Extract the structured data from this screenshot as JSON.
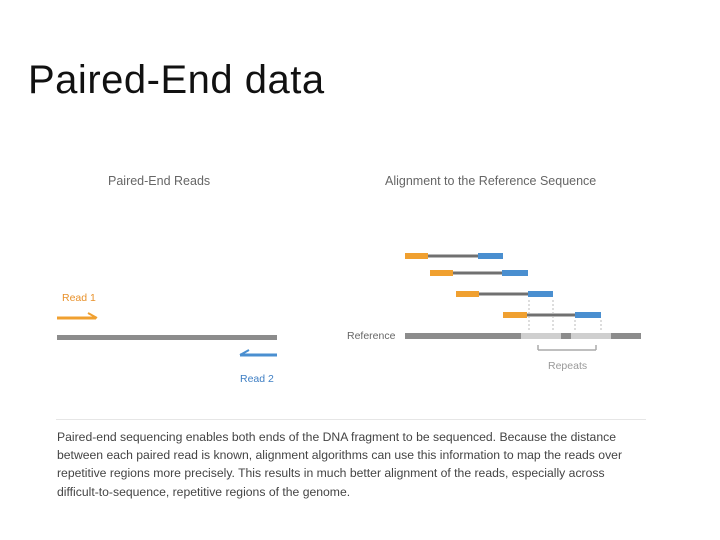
{
  "slide": {
    "title": "Paired-End data"
  },
  "figure": {
    "left_panel_title": "Paired-End Reads",
    "right_panel_title": "Alignment to the Reference Sequence",
    "read1_label": "Read 1",
    "read2_label": "Read 2",
    "reference_label": "Reference",
    "repeats_label": "Repeats"
  },
  "colors": {
    "read1": "#f0a030",
    "read2": "#4a8fd0",
    "reference": "#8c8c8c",
    "connector": "#707070",
    "repeat_region": "#cfcfcf",
    "label_orange": "#e8912a",
    "label_blue": "#3f7fc4",
    "panel_title": "#666666"
  },
  "caption": {
    "text": "Paired-end sequencing enables both ends of the DNA fragment to be sequenced. Because the distance between each paired read is known, alignment algorithms can use this information to map the reads over repetitive regions more precisely. This results in much better alignment of the reads, especially across difficult-to-sequence, repetitive regions of the genome."
  }
}
